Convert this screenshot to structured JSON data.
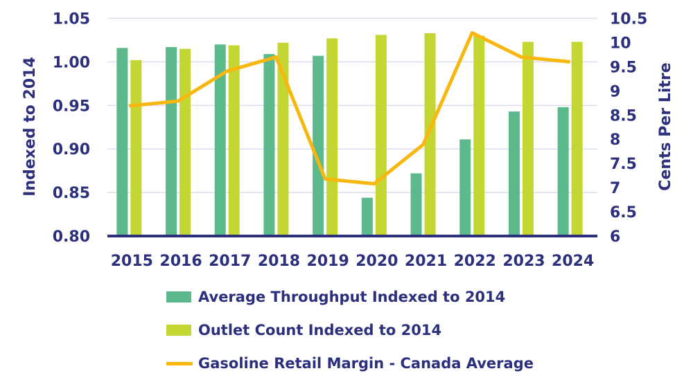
{
  "chart_data": {
    "type": "bar",
    "categories": [
      "2015",
      "2016",
      "2017",
      "2018",
      "2019",
      "2020",
      "2021",
      "2022",
      "2023",
      "2024"
    ],
    "series": [
      {
        "name": "Average Throughput Indexed to 2014",
        "type": "bar",
        "axis": "left",
        "color": "#5bb98c",
        "values": [
          1.016,
          1.017,
          1.02,
          1.009,
          1.007,
          0.844,
          0.872,
          0.911,
          0.943,
          0.948
        ]
      },
      {
        "name": "Outlet Count Indexed to 2014",
        "type": "bar",
        "axis": "left",
        "color": "#c4d632",
        "values": [
          1.002,
          1.015,
          1.019,
          1.022,
          1.027,
          1.031,
          1.033,
          1.03,
          1.023,
          1.023
        ]
      },
      {
        "name": "Gasoline Retail Margin - Canada Average",
        "type": "line",
        "axis": "right",
        "color": "#f7b70f",
        "values": [
          8.69,
          8.79,
          9.41,
          9.7,
          7.18,
          7.08,
          7.89,
          10.2,
          9.7,
          9.6
        ]
      }
    ],
    "ylabel": "Indexed to 2014",
    "ylabel_right": "Cents Per Litre",
    "ylim": [
      0.8,
      1.05
    ],
    "ylim_right": [
      6,
      10.5
    ],
    "yticks": [
      "0.80",
      "0.85",
      "0.90",
      "0.95",
      "1.00",
      "1.05"
    ],
    "yticks_right": [
      "6",
      "6.5",
      "7",
      "7.5",
      "8",
      "8.5",
      "9",
      "9.5",
      "10",
      "10.5"
    ],
    "grid": true,
    "legend_position": "bottom"
  }
}
